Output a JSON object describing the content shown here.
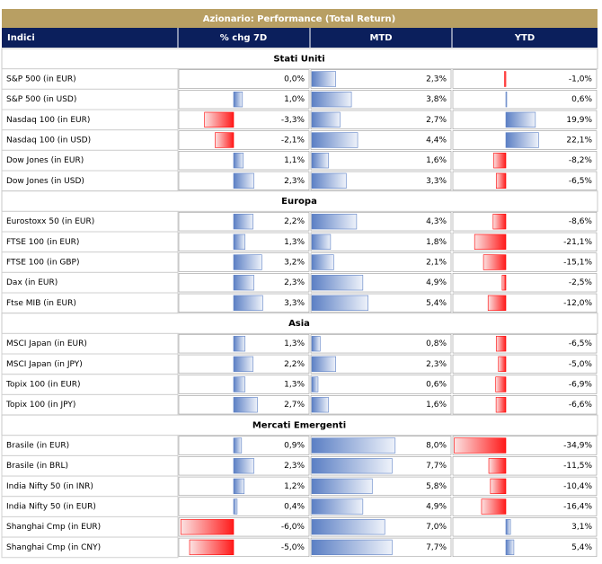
{
  "title": "Azionario: Performance (Total Return)",
  "headers": [
    "Indici",
    "% chg 7D",
    "MTD",
    "YTD"
  ],
  "groups": [
    {
      "name": "Stati Uniti",
      "rows": [
        {
          "name": "S&P 500 (in EUR)",
          "values": [
            {
              "value": 0.0,
              "label": "0,0%"
            },
            {
              "value": 2.3,
              "label": "2,3%"
            },
            {
              "value": -1.0,
              "label": "-1,0%"
            }
          ]
        },
        {
          "name": "S&P 500 (in USD)",
          "values": [
            {
              "value": 1.0,
              "label": "1,0%"
            },
            {
              "value": 3.8,
              "label": "3,8%"
            },
            {
              "value": 0.6,
              "label": "0,6%"
            }
          ]
        },
        {
          "name": "Nasdaq 100 (in EUR)",
          "values": [
            {
              "value": -3.3,
              "label": "-3,3%"
            },
            {
              "value": 2.7,
              "label": "2,7%"
            },
            {
              "value": 19.9,
              "label": "19,9%"
            }
          ]
        },
        {
          "name": "Nasdaq 100 (in USD)",
          "values": [
            {
              "value": -2.1,
              "label": "-2,1%"
            },
            {
              "value": 4.4,
              "label": "4,4%"
            },
            {
              "value": 22.1,
              "label": "22,1%"
            }
          ]
        },
        {
          "name": "Dow Jones (in EUR)",
          "values": [
            {
              "value": 1.1,
              "label": "1,1%"
            },
            {
              "value": 1.6,
              "label": "1,6%"
            },
            {
              "value": -8.2,
              "label": "-8,2%"
            }
          ]
        },
        {
          "name": "Dow Jones (in USD)",
          "values": [
            {
              "value": 2.3,
              "label": "2,3%"
            },
            {
              "value": 3.3,
              "label": "3,3%"
            },
            {
              "value": -6.5,
              "label": "-6,5%"
            }
          ]
        }
      ]
    },
    {
      "name": "Europa",
      "rows": [
        {
          "name": "Eurostoxx 50 (in EUR)",
          "values": [
            {
              "value": 2.2,
              "label": "2,2%"
            },
            {
              "value": 4.3,
              "label": "4,3%"
            },
            {
              "value": -8.6,
              "label": "-8,6%"
            }
          ]
        },
        {
          "name": "FTSE 100 (in EUR)",
          "values": [
            {
              "value": 1.3,
              "label": "1,3%"
            },
            {
              "value": 1.8,
              "label": "1,8%"
            },
            {
              "value": -21.1,
              "label": "-21,1%"
            }
          ]
        },
        {
          "name": "FTSE 100 (in GBP)",
          "values": [
            {
              "value": 3.2,
              "label": "3,2%"
            },
            {
              "value": 2.1,
              "label": "2,1%"
            },
            {
              "value": -15.1,
              "label": "-15,1%"
            }
          ]
        },
        {
          "name": "Dax (in EUR)",
          "values": [
            {
              "value": 2.3,
              "label": "2,3%"
            },
            {
              "value": 4.9,
              "label": "4,9%"
            },
            {
              "value": -2.5,
              "label": "-2,5%"
            }
          ]
        },
        {
          "name": "Ftse MIB (in EUR)",
          "values": [
            {
              "value": 3.3,
              "label": "3,3%"
            },
            {
              "value": 5.4,
              "label": "5,4%"
            },
            {
              "value": -12.0,
              "label": "-12,0%"
            }
          ]
        }
      ]
    },
    {
      "name": "Asia",
      "rows": [
        {
          "name": "MSCI Japan (in EUR)",
          "values": [
            {
              "value": 1.3,
              "label": "1,3%"
            },
            {
              "value": 0.8,
              "label": "0,8%"
            },
            {
              "value": -6.5,
              "label": "-6,5%"
            }
          ]
        },
        {
          "name": "MSCI Japan (in JPY)",
          "values": [
            {
              "value": 2.2,
              "label": "2,2%"
            },
            {
              "value": 2.3,
              "label": "2,3%"
            },
            {
              "value": -5.0,
              "label": "-5,0%"
            }
          ]
        },
        {
          "name": "Topix 100 (in EUR)",
          "values": [
            {
              "value": 1.3,
              "label": "1,3%"
            },
            {
              "value": 0.6,
              "label": "0,6%"
            },
            {
              "value": -6.9,
              "label": "-6,9%"
            }
          ]
        },
        {
          "name": "Topix 100 (in JPY)",
          "values": [
            {
              "value": 2.7,
              "label": "2,7%"
            },
            {
              "value": 1.6,
              "label": "1,6%"
            },
            {
              "value": -6.6,
              "label": "-6,6%"
            }
          ]
        }
      ]
    },
    {
      "name": "Mercati Emergenti",
      "rows": [
        {
          "name": "Brasile (in EUR)",
          "values": [
            {
              "value": 0.9,
              "label": "0,9%"
            },
            {
              "value": 8.0,
              "label": "8,0%"
            },
            {
              "value": -34.9,
              "label": "-34,9%"
            }
          ]
        },
        {
          "name": "Brasile (in BRL)",
          "values": [
            {
              "value": 2.3,
              "label": "2,3%"
            },
            {
              "value": 7.7,
              "label": "7,7%"
            },
            {
              "value": -11.5,
              "label": "-11,5%"
            }
          ]
        },
        {
          "name": "India Nifty 50 (in INR)",
          "values": [
            {
              "value": 1.2,
              "label": "1,2%"
            },
            {
              "value": 5.8,
              "label": "5,8%"
            },
            {
              "value": -10.4,
              "label": "-10,4%"
            }
          ]
        },
        {
          "name": "India Nifty 50 (in EUR)",
          "values": [
            {
              "value": 0.4,
              "label": "0,4%"
            },
            {
              "value": 4.9,
              "label": "4,9%"
            },
            {
              "value": -16.4,
              "label": "-16,4%"
            }
          ]
        },
        {
          "name": "Shanghai Cmp (in EUR)",
          "values": [
            {
              "value": -6.0,
              "label": "-6,0%"
            },
            {
              "value": 7.0,
              "label": "7,0%"
            },
            {
              "value": 3.1,
              "label": "3,1%"
            }
          ]
        },
        {
          "name": "Shanghai Cmp (in CNY)",
          "values": [
            {
              "value": -5.0,
              "label": "-5,0%"
            },
            {
              "value": 7.7,
              "label": "7,7%"
            },
            {
              "value": 5.4,
              "label": "5,4%"
            }
          ]
        }
      ]
    }
  ]
}
